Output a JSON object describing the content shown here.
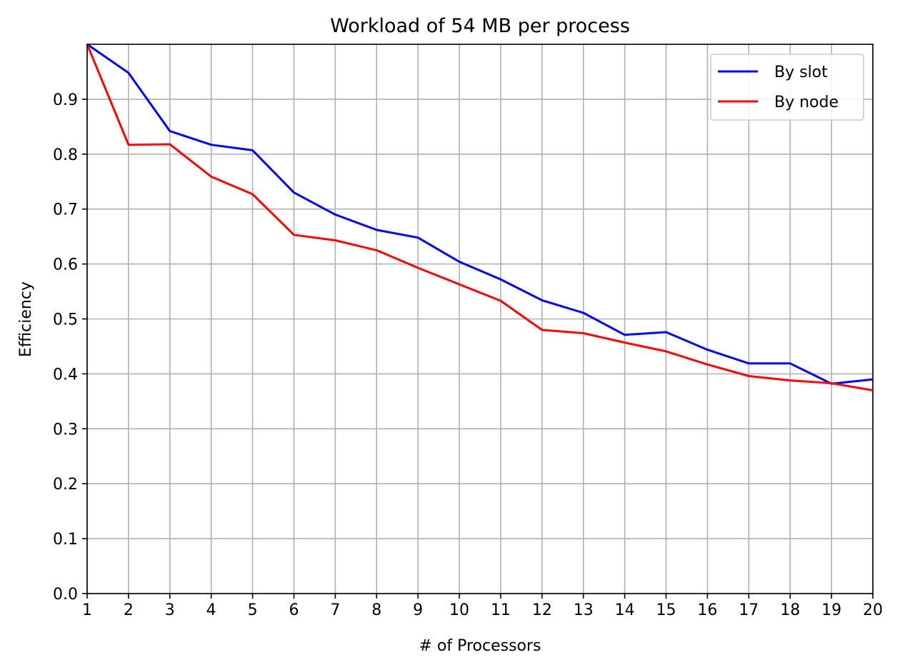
{
  "chart_data": {
    "type": "line",
    "title": "Workload of 54 MB per process",
    "xlabel": "# of Processors",
    "ylabel": "Efficiency",
    "x": [
      1,
      2,
      3,
      4,
      5,
      6,
      7,
      8,
      9,
      10,
      11,
      12,
      13,
      14,
      15,
      16,
      17,
      18,
      19,
      20
    ],
    "xlim": [
      1,
      20
    ],
    "ylim": [
      0.0,
      1.0
    ],
    "x_ticks": [
      "1",
      "2",
      "3",
      "4",
      "5",
      "6",
      "7",
      "8",
      "9",
      "10",
      "11",
      "12",
      "13",
      "14",
      "15",
      "16",
      "17",
      "18",
      "19",
      "20"
    ],
    "y_ticks": [
      {
        "value": 0.0,
        "label": "0.0"
      },
      {
        "value": 0.1,
        "label": "0.1"
      },
      {
        "value": 0.2,
        "label": "0.2"
      },
      {
        "value": 0.3,
        "label": "0.3"
      },
      {
        "value": 0.4,
        "label": "0.4"
      },
      {
        "value": 0.5,
        "label": "0.5"
      },
      {
        "value": 0.6,
        "label": "0.6"
      },
      {
        "value": 0.7,
        "label": "0.7"
      },
      {
        "value": 0.8,
        "label": "0.8"
      },
      {
        "value": 0.9,
        "label": "0.9"
      }
    ],
    "grid": true,
    "legend_position": "top-right",
    "series": [
      {
        "name": "By slot",
        "color": "#0000ff",
        "values": [
          1.0,
          0.948,
          0.842,
          0.817,
          0.807,
          0.73,
          0.69,
          0.662,
          0.648,
          0.604,
          0.572,
          0.534,
          0.511,
          0.471,
          0.476,
          0.444,
          0.419,
          0.419,
          0.382,
          0.39
        ]
      },
      {
        "name": "By node",
        "color": "#ff0000",
        "values": [
          1.0,
          0.817,
          0.818,
          0.759,
          0.727,
          0.653,
          0.643,
          0.625,
          0.593,
          0.563,
          0.533,
          0.48,
          0.474,
          0.457,
          0.441,
          0.417,
          0.396,
          0.388,
          0.383,
          0.37
        ]
      }
    ]
  }
}
